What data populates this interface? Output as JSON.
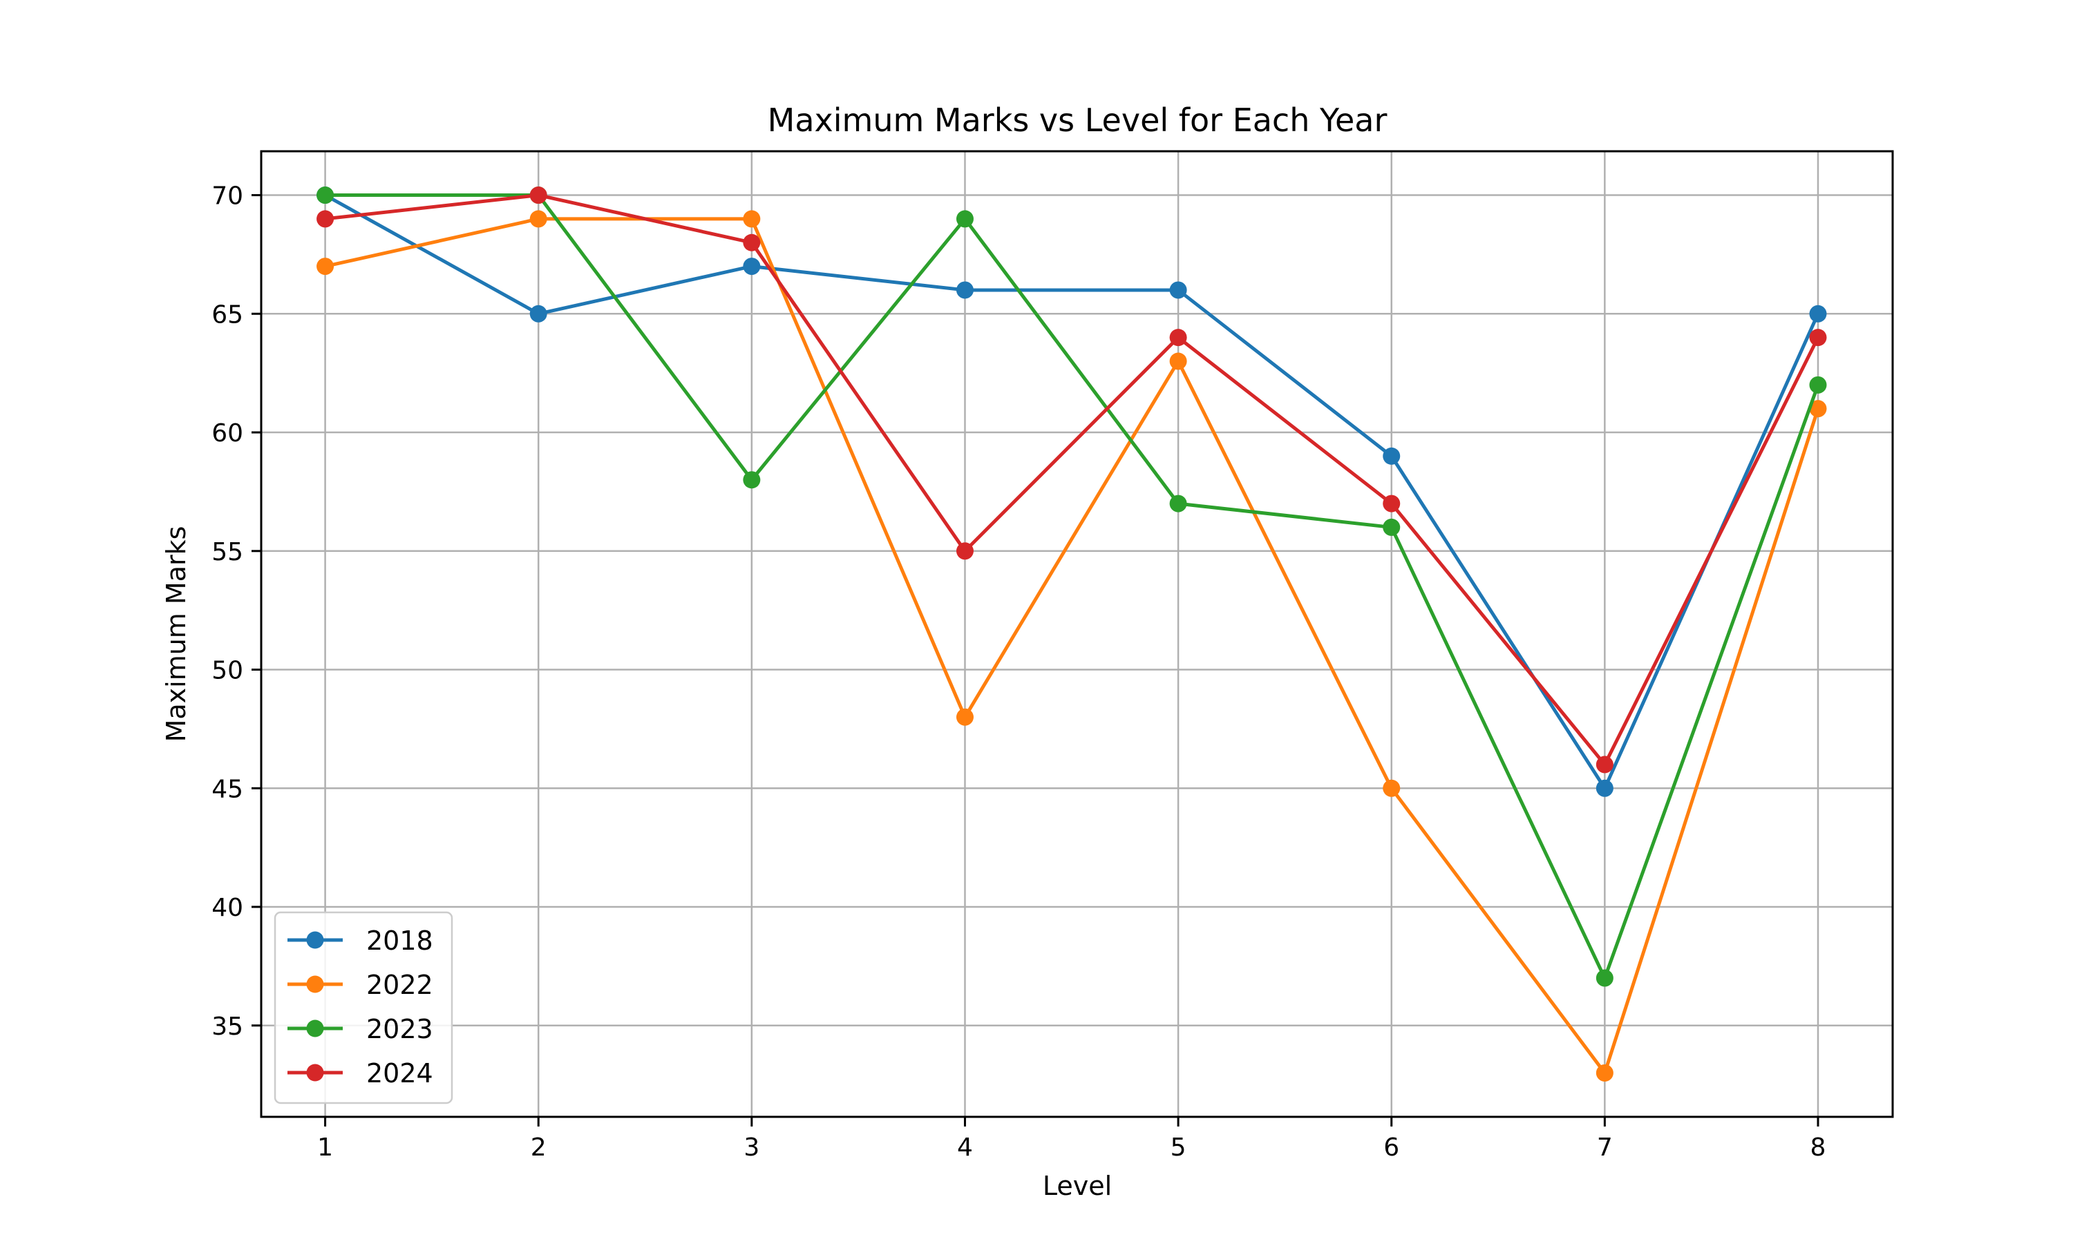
{
  "chart_data": {
    "type": "line",
    "title": "Maximum Marks vs Level for Each Year",
    "xlabel": "Level",
    "ylabel": "Maximum Marks",
    "x": [
      1,
      2,
      3,
      4,
      5,
      6,
      7,
      8
    ],
    "x_ticks": [
      "1",
      "2",
      "3",
      "4",
      "5",
      "6",
      "7",
      "8"
    ],
    "y_ticks": [
      "35",
      "40",
      "45",
      "50",
      "55",
      "60",
      "65",
      "70"
    ],
    "xlim": [
      0.7,
      8.35
    ],
    "ylim": [
      31.15,
      71.85
    ],
    "grid": true,
    "marker": "circle",
    "legend_position": "lower-left",
    "series": [
      {
        "name": "2018",
        "color": "#1f77b4",
        "values": [
          70,
          65,
          67,
          66,
          66,
          59,
          45,
          65
        ]
      },
      {
        "name": "2022",
        "color": "#ff7f0e",
        "values": [
          67,
          69,
          69,
          48,
          63,
          45,
          33,
          61
        ]
      },
      {
        "name": "2023",
        "color": "#2ca02c",
        "values": [
          70,
          70,
          58,
          69,
          57,
          56,
          37,
          62
        ]
      },
      {
        "name": "2024",
        "color": "#d62728",
        "values": [
          69,
          70,
          68,
          55,
          64,
          57,
          46,
          64
        ]
      }
    ]
  }
}
